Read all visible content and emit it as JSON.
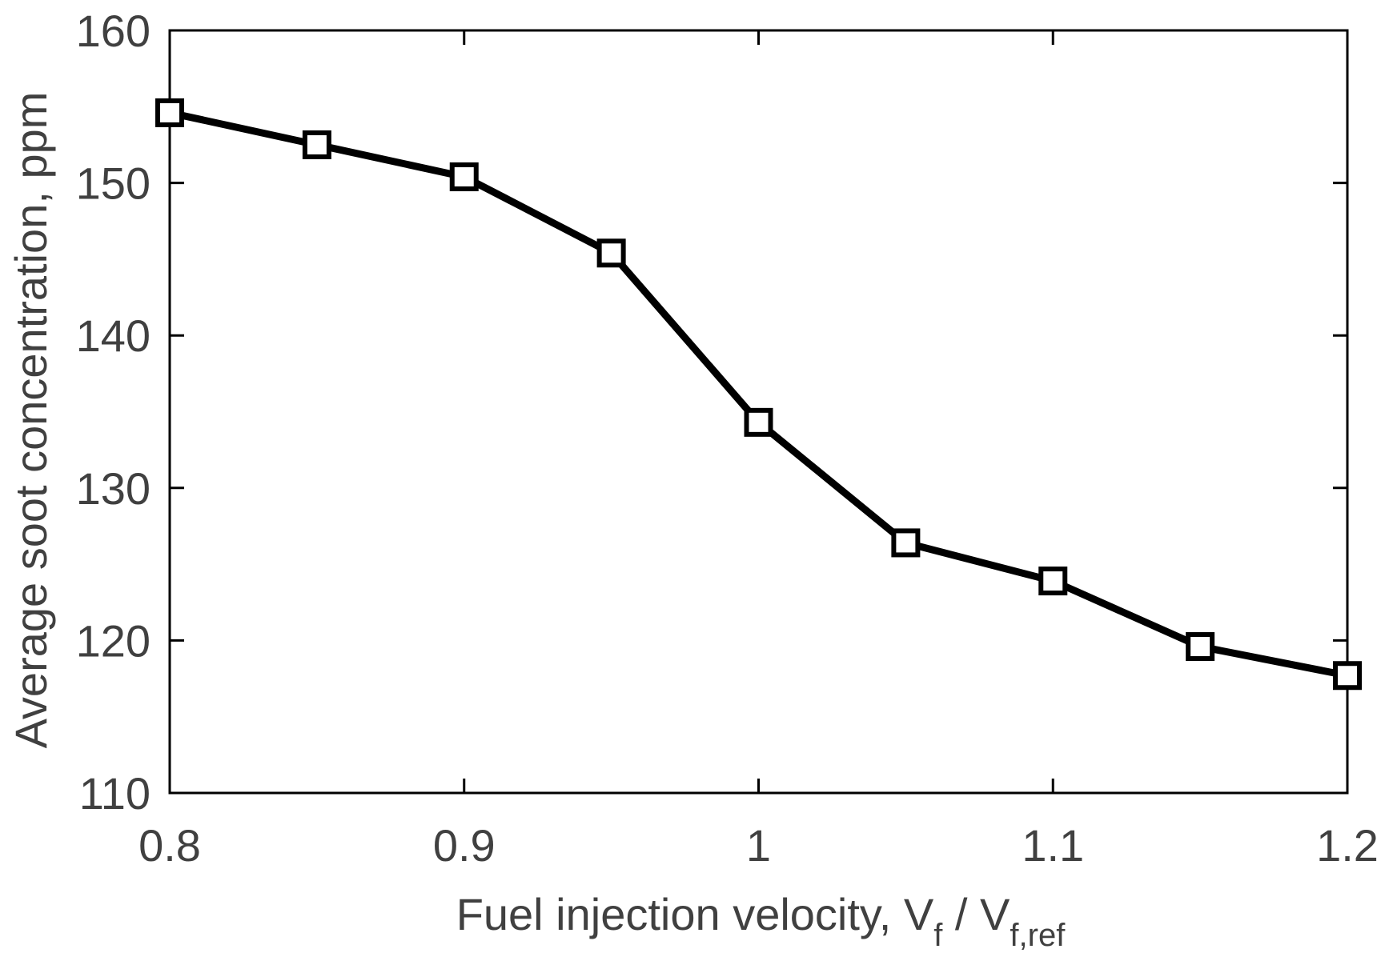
{
  "chart_data": {
    "type": "line",
    "title": "",
    "xlabel": {
      "main": "Fuel injection velocity, V",
      "sub1": "f",
      "slash": " / V",
      "sub2": "f,ref"
    },
    "ylabel": "Average soot concentration, ppm",
    "xlim": [
      0.8,
      1.2
    ],
    "ylim": [
      110,
      160
    ],
    "xticks": [
      "0.8",
      "0.9",
      "1",
      "1.1",
      "1.2"
    ],
    "xtick_values": [
      0.8,
      0.9,
      1.0,
      1.1,
      1.2
    ],
    "yticks": [
      "110",
      "120",
      "130",
      "140",
      "150",
      "160"
    ],
    "ytick_values": [
      110,
      120,
      130,
      140,
      150,
      160
    ],
    "grid": false,
    "series": [
      {
        "name": "soot",
        "marker": "square",
        "color": "#000000",
        "x": [
          0.8,
          0.85,
          0.9,
          0.95,
          1.0,
          1.05,
          1.1,
          1.15,
          1.2
        ],
        "y": [
          154.6,
          152.5,
          150.4,
          145.4,
          134.3,
          126.4,
          123.9,
          119.6,
          117.7
        ]
      }
    ]
  }
}
